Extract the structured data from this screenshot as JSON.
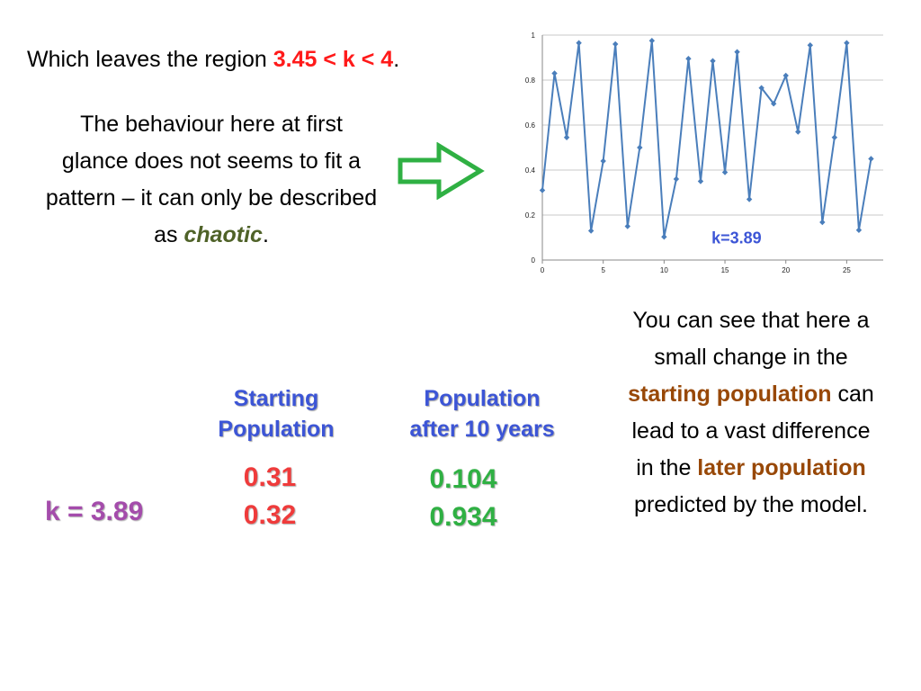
{
  "intro": {
    "before": "Which leaves the region ",
    "highlight": "3.45 < k < 4",
    "after": "."
  },
  "behaviour": {
    "text": "The behaviour here at first glance does not seems to fit a pattern – it can only be described as ",
    "keyword": "chaotic",
    "end": "."
  },
  "explanation": {
    "p1": "You can see that here a small change in the ",
    "h1": "starting population",
    "p2": " can lead to a vast difference in the ",
    "h2": "later population",
    "p3": " predicted by the model."
  },
  "table": {
    "header_start": "Starting\nPopulation",
    "header_after": "Population\nafter 10 years",
    "k_label": "k = 3.89",
    "start_values": [
      "0.31",
      "0.32"
    ],
    "after_values": [
      "0.104",
      "0.934"
    ]
  },
  "colors": {
    "series": "#4a7ebb",
    "highlight_red": "#ff1a1a",
    "chaotic_green": "#4f6228",
    "brown": "#984807",
    "header_blue": "#3c55d6",
    "value_red": "#ef3b3b",
    "value_green": "#2fb043",
    "k_purple": "#a44cab",
    "arrow_green": "#2fb043"
  },
  "chart_data": {
    "type": "line",
    "annotation": "k=3.89",
    "x": [
      0,
      1,
      2,
      3,
      4,
      5,
      6,
      7,
      8,
      9,
      10,
      11,
      12,
      13,
      14,
      15,
      16,
      17,
      18,
      19,
      20,
      21,
      22,
      23,
      24,
      25,
      26,
      27
    ],
    "series": [
      {
        "values": [
          0.31,
          0.83,
          0.545,
          0.965,
          0.13,
          0.44,
          0.96,
          0.15,
          0.5,
          0.975,
          0.103,
          0.36,
          0.895,
          0.35,
          0.885,
          0.39,
          0.925,
          0.27,
          0.765,
          0.695,
          0.82,
          0.57,
          0.955,
          0.168,
          0.545,
          0.965,
          0.133,
          0.45
        ]
      }
    ],
    "xlim": [
      0,
      28
    ],
    "ylim": [
      0,
      1
    ],
    "xticks": [
      0,
      5,
      10,
      15,
      20,
      25
    ],
    "yticks": [
      0,
      0.2,
      0.4,
      0.6,
      0.8,
      1
    ],
    "ytick_labels": [
      "0",
      "0.2",
      "0.4",
      "0.6",
      "0.8",
      "1"
    ],
    "grid": true,
    "legend": false
  }
}
